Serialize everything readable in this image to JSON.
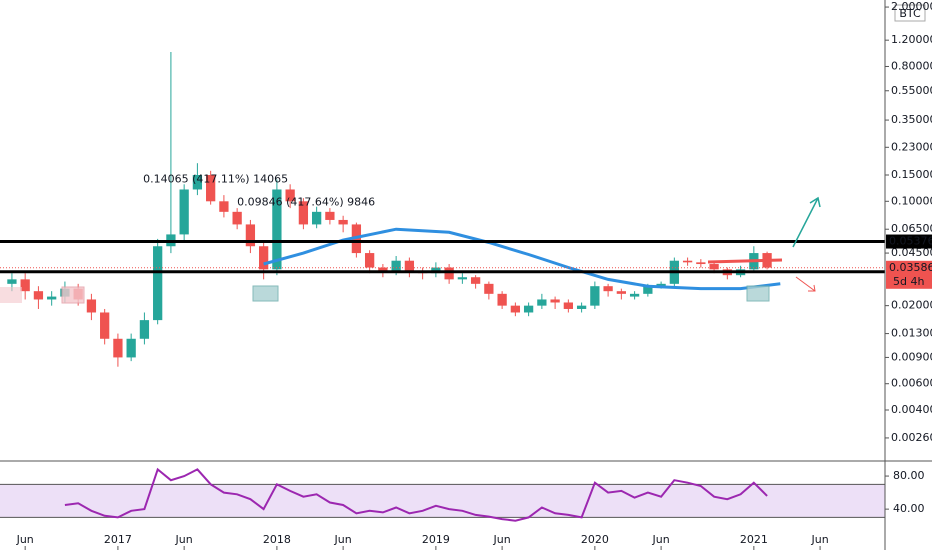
{
  "chart_data": [
    {
      "type": "candlestick",
      "currency": "BTC",
      "log_scale": true,
      "xlim": [
        -8.9,
        57.9
      ],
      "ylim": [
        0.00185,
        2.23
      ],
      "xticks": [
        {
          "value": -7,
          "label": "Jun"
        },
        {
          "value": 0,
          "label": "2017"
        },
        {
          "value": 5,
          "label": "Jun"
        },
        {
          "value": 12,
          "label": "2018"
        },
        {
          "value": 17,
          "label": "Jun"
        },
        {
          "value": 24,
          "label": "2019"
        },
        {
          "value": 29,
          "label": "Jun"
        },
        {
          "value": 36,
          "label": "2020"
        },
        {
          "value": 41,
          "label": "Jun"
        },
        {
          "value": 48,
          "label": "2021"
        },
        {
          "value": 53,
          "label": "Jun"
        }
      ],
      "yticks": [
        {
          "value": 2,
          "label": "2.00000"
        },
        {
          "value": 1.2,
          "label": "1.20000"
        },
        {
          "value": 0.8,
          "label": "0.80000"
        },
        {
          "value": 0.55,
          "label": "0.55000"
        },
        {
          "value": 0.35,
          "label": "0.35000"
        },
        {
          "value": 0.23,
          "label": "0.23000"
        },
        {
          "value": 0.15,
          "label": "0.15000"
        },
        {
          "value": 0.1,
          "label": "0.10000"
        },
        {
          "value": 0.065,
          "label": "0.06500"
        },
        {
          "value": 0.045,
          "label": "0.04500"
        },
        {
          "value": 0.02,
          "label": "0.02000"
        },
        {
          "value": 0.013,
          "label": "0.01300"
        },
        {
          "value": 0.009,
          "label": "0.00900"
        },
        {
          "value": 0.006,
          "label": "0.00600"
        },
        {
          "value": 0.004,
          "label": "0.00400"
        },
        {
          "value": 0.0026,
          "label": "0.00260"
        }
      ],
      "up_color": "#26a69a",
      "down_color": "#ef5350",
      "series": [
        {
          "x": [
            -8,
            -7,
            -6,
            -5,
            -4,
            -3,
            -2,
            -1,
            0,
            1,
            2,
            3,
            4,
            5,
            6,
            7,
            8,
            9,
            10,
            11,
            12,
            13,
            14,
            15,
            16,
            17,
            18,
            19,
            20,
            21,
            22,
            23,
            24,
            25,
            26,
            27,
            28,
            29,
            30,
            31,
            32,
            33,
            34,
            35,
            36,
            37,
            38,
            39,
            40,
            41,
            42,
            43,
            44,
            45,
            46,
            47,
            48,
            49
          ],
          "open": [
            0.028,
            0.03,
            0.025,
            0.022,
            0.023,
            0.026,
            0.022,
            0.018,
            0.012,
            0.009,
            0.012,
            0.016,
            0.05,
            0.06,
            0.12,
            0.15,
            0.1,
            0.085,
            0.07,
            0.05,
            0.035,
            0.12,
            0.1,
            0.07,
            0.085,
            0.075,
            0.07,
            0.045,
            0.036,
            0.034,
            0.04,
            0.034,
            0.033,
            0.036,
            0.03,
            0.031,
            0.028,
            0.024,
            0.02,
            0.018,
            0.02,
            0.022,
            0.021,
            0.019,
            0.02,
            0.027,
            0.025,
            0.023,
            0.024,
            0.027,
            0.028,
            0.04,
            0.039,
            0.038,
            0.035,
            0.032,
            0.035,
            0.045
          ],
          "high": [
            0.033,
            0.033,
            0.027,
            0.025,
            0.029,
            0.028,
            0.024,
            0.019,
            0.013,
            0.013,
            0.018,
            0.056,
            1.0,
            0.13,
            0.18,
            0.16,
            0.11,
            0.09,
            0.075,
            0.055,
            0.14,
            0.13,
            0.105,
            0.092,
            0.09,
            0.08,
            0.072,
            0.047,
            0.038,
            0.043,
            0.042,
            0.036,
            0.039,
            0.038,
            0.033,
            0.032,
            0.029,
            0.025,
            0.021,
            0.021,
            0.024,
            0.023,
            0.022,
            0.021,
            0.029,
            0.028,
            0.026,
            0.025,
            0.028,
            0.029,
            0.042,
            0.042,
            0.041,
            0.039,
            0.036,
            0.037,
            0.05,
            0.046
          ],
          "low": [
            0.025,
            0.022,
            0.019,
            0.02,
            0.021,
            0.02,
            0.016,
            0.011,
            0.0078,
            0.0085,
            0.011,
            0.015,
            0.045,
            0.055,
            0.11,
            0.095,
            0.078,
            0.065,
            0.045,
            0.03,
            0.032,
            0.09,
            0.065,
            0.066,
            0.07,
            0.062,
            0.042,
            0.033,
            0.031,
            0.032,
            0.031,
            0.03,
            0.031,
            0.028,
            0.028,
            0.026,
            0.022,
            0.019,
            0.017,
            0.017,
            0.019,
            0.019,
            0.018,
            0.018,
            0.019,
            0.023,
            0.022,
            0.022,
            0.023,
            0.026,
            0.027,
            0.037,
            0.036,
            0.033,
            0.03,
            0.031,
            0.034,
            0.035
          ],
          "close": [
            0.03,
            0.025,
            0.022,
            0.023,
            0.026,
            0.022,
            0.018,
            0.012,
            0.009,
            0.012,
            0.016,
            0.05,
            0.06,
            0.12,
            0.15,
            0.1,
            0.085,
            0.07,
            0.05,
            0.035,
            0.12,
            0.1,
            0.07,
            0.085,
            0.075,
            0.07,
            0.045,
            0.036,
            0.034,
            0.04,
            0.034,
            0.033,
            0.036,
            0.03,
            0.031,
            0.028,
            0.024,
            0.02,
            0.018,
            0.02,
            0.022,
            0.021,
            0.019,
            0.02,
            0.027,
            0.025,
            0.024,
            0.024,
            0.027,
            0.028,
            0.04,
            0.039,
            0.038,
            0.035,
            0.032,
            0.035,
            0.045,
            0.036
          ]
        },
        {
          "type": "line",
          "color": "#2f8fe0",
          "x": [
            11,
            14,
            17,
            21,
            25,
            28,
            31,
            34,
            37,
            40,
            44,
            47,
            50
          ],
          "values": [
            0.038,
            0.045,
            0.055,
            0.065,
            0.062,
            0.053,
            0.044,
            0.036,
            0.03,
            0.027,
            0.026,
            0.026,
            0.028
          ]
        }
      ],
      "levels": [
        0.05376,
        0.03372
      ],
      "level_color": "#000000",
      "last_price": 0.03586,
      "last_price_color": "#ef5350",
      "countdown": "5d 4h",
      "annotations": [
        {
          "text": "0.14065 (417.11%) 14065",
          "x": 1.9,
          "y": 0.14
        },
        {
          "text": "0.09846 (417.64%) 9846",
          "x": 9,
          "y": 0.098
        }
      ]
    },
    {
      "type": "line",
      "color": "#9c27b0",
      "xlim": [
        -8.9,
        57.9
      ],
      "ylim": [
        -7,
        97
      ],
      "yticks": [
        {
          "value": 80,
          "label": "80.00"
        },
        {
          "value": 40,
          "label": "40.00"
        }
      ],
      "band": [
        30,
        70
      ],
      "band_color": "#ede0f7",
      "x": [
        -4,
        -3,
        -2,
        -1,
        0,
        1,
        2,
        3,
        4,
        5,
        6,
        7,
        8,
        9,
        10,
        11,
        12,
        13,
        14,
        15,
        16,
        17,
        18,
        19,
        20,
        21,
        22,
        23,
        24,
        25,
        26,
        27,
        28,
        29,
        30,
        31,
        32,
        33,
        34,
        35,
        36,
        37,
        38,
        39,
        40,
        41,
        42,
        43,
        44,
        45,
        46,
        47,
        48,
        49
      ],
      "values": [
        45,
        47,
        38,
        32,
        30,
        38,
        40,
        88,
        75,
        80,
        88,
        70,
        60,
        58,
        52,
        40,
        70,
        62,
        55,
        58,
        48,
        45,
        35,
        38,
        36,
        42,
        35,
        38,
        44,
        40,
        38,
        33,
        31,
        28,
        26,
        30,
        42,
        35,
        33,
        30,
        72,
        60,
        62,
        54,
        60,
        55,
        75,
        72,
        68,
        55,
        52,
        58,
        72,
        56
      ]
    }
  ]
}
